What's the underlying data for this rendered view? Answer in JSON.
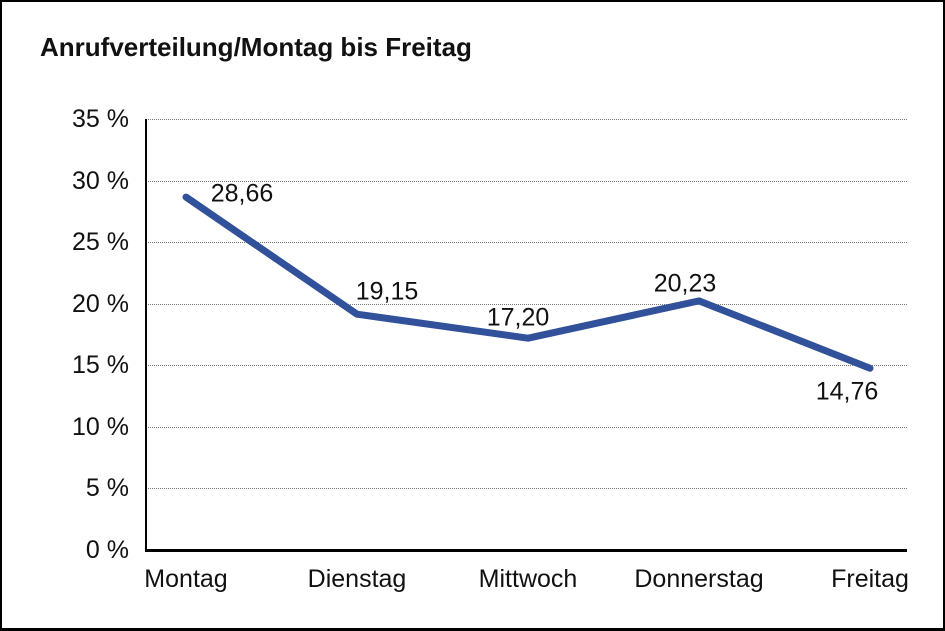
{
  "chart_data": {
    "type": "line",
    "title": "Anrufverteilung/Montag bis Freitag",
    "categories": [
      "Montag",
      "Dienstag",
      "Mittwoch",
      "Donnerstag",
      "Freitag"
    ],
    "values": [
      28.66,
      19.15,
      17.2,
      20.23,
      14.76
    ],
    "point_labels": [
      "28,66",
      "19,15",
      "17,20",
      "20,23",
      "14,76"
    ],
    "series_name": "Anrufverteilung",
    "y_ticks": [
      "35 %",
      "30 %",
      "25 %",
      "20 %",
      "15 %",
      "10 %",
      "5 %",
      "0 %"
    ],
    "y_tick_values": [
      35,
      30,
      25,
      20,
      15,
      10,
      5,
      0
    ],
    "ylim": [
      0,
      35
    ],
    "y_unit": "%",
    "xlabel": "",
    "ylabel": "",
    "grid": "horizontal-dotted",
    "legend": "none",
    "line_color": "#32519B",
    "axis_color": "#000000",
    "text_color": "#111111"
  }
}
